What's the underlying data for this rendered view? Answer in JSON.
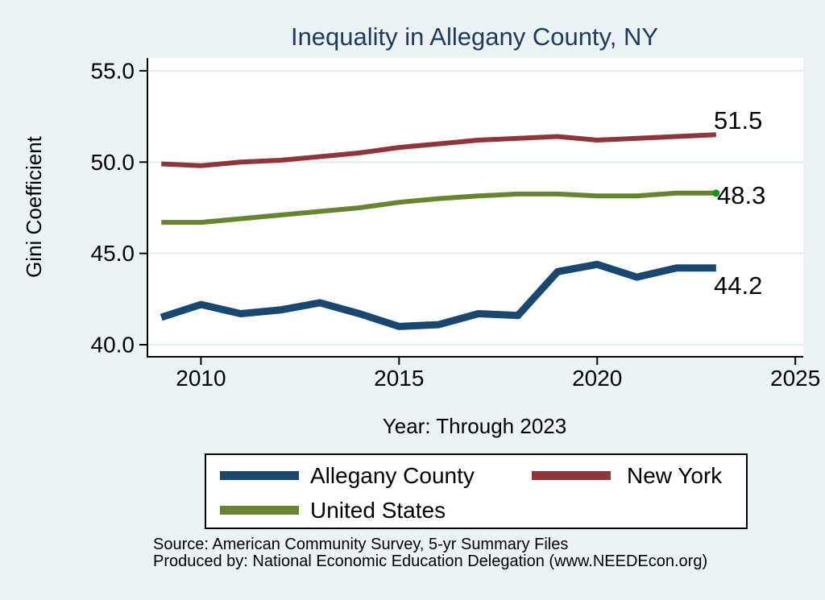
{
  "title": "Inequality in Allegany County, NY",
  "x_axis": {
    "label": "Year: Through 2023"
  },
  "y_axis": {
    "label": "Gini Coefficient"
  },
  "source": {
    "line1": "Source: American Community Survey, 5-yr Summary Files",
    "line2": "Produced by: National Economic Education Delegation (www.NEEDEcon.org)"
  },
  "colors": {
    "background": "#eaf2f3",
    "plot_background": "#ffffff",
    "gridline": "#e2edf0",
    "axis": "#000000",
    "title_text": "#21395e",
    "end_marker_green": "#18921b"
  },
  "chart_data": {
    "type": "line",
    "title": "Inequality in Allegany County, NY",
    "xlabel": "Year: Through 2023",
    "ylabel": "Gini Coefficient",
    "grid": true,
    "legend_position": "bottom",
    "xlim": [
      2008.65,
      2025.2
    ],
    "ylim": [
      39.34,
      55.7
    ],
    "xticks": [
      {
        "v": 2010,
        "label": "2010"
      },
      {
        "v": 2015,
        "label": "2015"
      },
      {
        "v": 2020,
        "label": "2020"
      },
      {
        "v": 2025,
        "label": "2025"
      }
    ],
    "yticks": [
      {
        "v": 40,
        "label": "40.0"
      },
      {
        "v": 45,
        "label": "45.0"
      },
      {
        "v": 50,
        "label": "50.0"
      },
      {
        "v": 55,
        "label": "55.0"
      }
    ],
    "x": [
      2009,
      2010,
      2011,
      2012,
      2013,
      2014,
      2015,
      2016,
      2017,
      2018,
      2019,
      2020,
      2021,
      2022,
      2023
    ],
    "series": [
      {
        "name": "Allegany County",
        "color": "#1a476f",
        "stroke_width": 9,
        "end_label": "44.2",
        "end_marker": false,
        "values": [
          41.5,
          42.2,
          41.7,
          41.9,
          42.3,
          41.7,
          41.0,
          41.1,
          41.7,
          41.6,
          44.0,
          44.4,
          43.7,
          44.2,
          44.2
        ]
      },
      {
        "name": "New York",
        "color": "#90353b",
        "stroke_width": 6,
        "end_label": "51.5",
        "end_marker": false,
        "values": [
          49.9,
          49.8,
          50.0,
          50.1,
          50.3,
          50.5,
          50.8,
          51.0,
          51.2,
          51.3,
          51.4,
          51.2,
          51.3,
          51.4,
          51.5
        ]
      },
      {
        "name": "United States",
        "color": "#678430",
        "stroke_width": 6,
        "end_label": "48.3",
        "end_marker": true,
        "values": [
          46.7,
          46.7,
          46.9,
          47.1,
          47.3,
          47.5,
          47.8,
          48.0,
          48.15,
          48.25,
          48.25,
          48.15,
          48.15,
          48.3,
          48.3
        ]
      }
    ]
  },
  "legend": {
    "entries": [
      {
        "label": "Allegany County"
      },
      {
        "label": "New York"
      },
      {
        "label": "United States"
      }
    ]
  }
}
